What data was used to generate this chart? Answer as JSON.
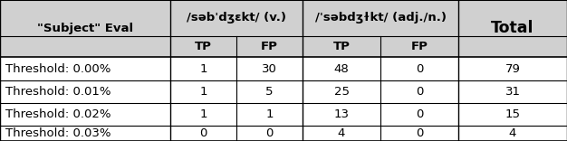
{
  "header1_label": "\"Subject\" Eval",
  "header2_label": "/səbˈdʒɛkt/ (v.)",
  "header3_label": "/ˈsəbdʒɫkt/ (adj./n.)",
  "header4_label": "Total",
  "sub_headers": [
    "TP",
    "FP",
    "TP",
    "FP"
  ],
  "rows": [
    [
      "Threshold: 0.00%",
      "1",
      "30",
      "48",
      "0",
      "79"
    ],
    [
      "Threshold: 0.01%",
      "1",
      "5",
      "25",
      "0",
      "31"
    ],
    [
      "Threshold: 0.02%",
      "1",
      "1",
      "13",
      "0",
      "15"
    ],
    [
      "Threshold: 0.03%",
      "0",
      "0",
      "4",
      "0",
      "4"
    ]
  ],
  "bg_color": "#ffffff",
  "header_bg": "#d0d0d0",
  "line_color": "#000000",
  "font_size": 9.5
}
